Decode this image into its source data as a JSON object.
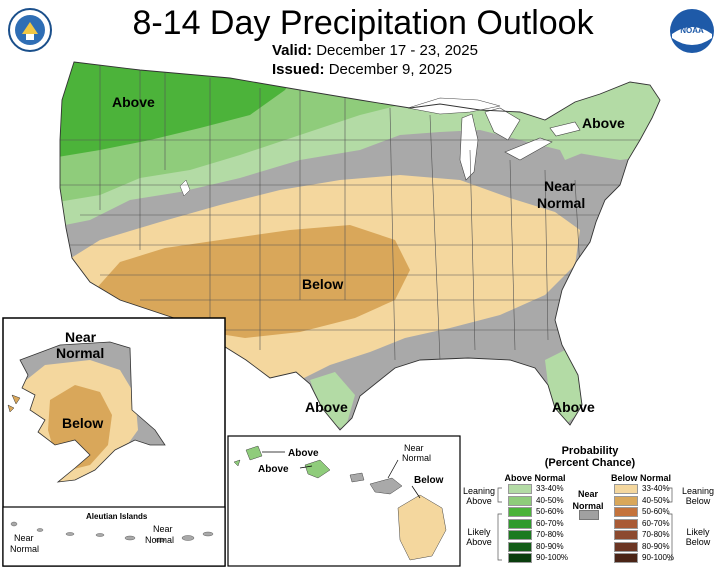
{
  "header": {
    "title": "8-14 Day Precipitation Outlook",
    "valid_label": "Valid:",
    "valid_value": "December 17 - 23, 2025",
    "issued_label": "Issued:",
    "issued_value": "December 9, 2025"
  },
  "logos": {
    "right_text": "NOAA"
  },
  "map_labels": {
    "nw_above": "Above",
    "ne_above": "Above",
    "east_near": "Near",
    "east_normal": "Normal",
    "sw_below": "Below",
    "tx_above": "Above",
    "fl_above": "Above",
    "ak_near": "Near",
    "ak_normal": "Normal",
    "ak_below": "Below",
    "aleutian_title": "Aleutian Islands",
    "aleut_near1": "Near",
    "aleut_normal1": "Normal",
    "aleut_near2": "Near",
    "aleut_normal2": "Normal",
    "hi_above1": "Above",
    "hi_above2": "Above",
    "hi_near": "Near",
    "hi_normal": "Normal",
    "hi_below": "Below"
  },
  "legend": {
    "title_line1": "Probability",
    "title_line2": "(Percent Chance)",
    "above_header": "Above Normal",
    "below_header": "Below Normal",
    "near_line1": "Near",
    "near_line2": "Normal",
    "leaning_above_1": "Leaning",
    "leaning_above_2": "Above",
    "likely_above_1": "Likely",
    "likely_above_2": "Above",
    "leaning_below_1": "Leaning",
    "leaning_below_2": "Below",
    "likely_below_1": "Likely",
    "likely_below_2": "Below",
    "above": [
      {
        "label": "33-40%",
        "color": "#b3dba5"
      },
      {
        "label": "40-50%",
        "color": "#8fcc7b"
      },
      {
        "label": "50-60%",
        "color": "#4cb33a"
      },
      {
        "label": "60-70%",
        "color": "#2e9a2b"
      },
      {
        "label": "70-80%",
        "color": "#1b7a1f"
      },
      {
        "label": "80-90%",
        "color": "#135c17"
      },
      {
        "label": "90-100%",
        "color": "#0a3d0d"
      }
    ],
    "below": [
      {
        "label": "33-40%",
        "color": "#f4d79e"
      },
      {
        "label": "40-50%",
        "color": "#d9a75a"
      },
      {
        "label": "50-60%",
        "color": "#c4733c"
      },
      {
        "label": "60-70%",
        "color": "#a95a35"
      },
      {
        "label": "70-80%",
        "color": "#8c4a2f"
      },
      {
        "label": "80-90%",
        "color": "#6b3523"
      },
      {
        "label": "90-100%",
        "color": "#4a2416"
      }
    ],
    "near_color": "#a0a0a0"
  },
  "colors": {
    "near_normal": "#a9a9a9",
    "above_lean": "#b3dba5",
    "above_mid": "#8fcc7b",
    "above_strong": "#4cb33a",
    "below_lean": "#f4d79e",
    "below_mid": "#d9a75a"
  }
}
